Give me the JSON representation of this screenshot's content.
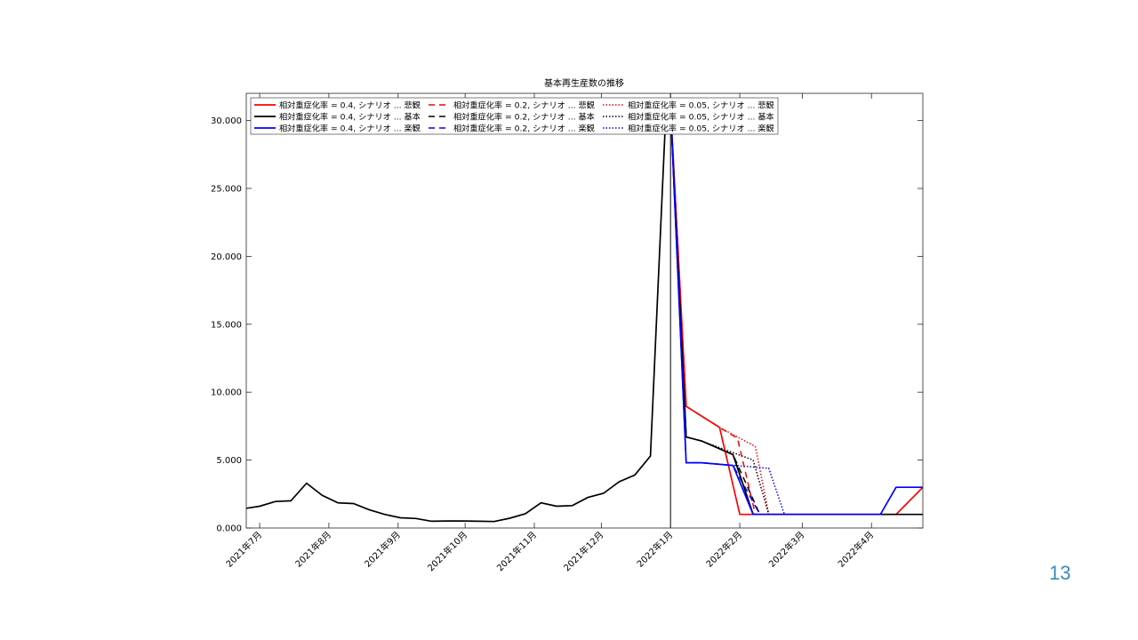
{
  "page": {
    "number": "13"
  },
  "chart_data": {
    "type": "line",
    "title": "基本再生産数の推移",
    "xlabel": "",
    "ylabel": "",
    "x_range": [
      "2021-06-25",
      "2022-04-24"
    ],
    "ylim": [
      0,
      32000
    ],
    "y_ticks": [
      0,
      5000,
      10000,
      15000,
      20000,
      25000,
      30000
    ],
    "y_tick_labels": [
      "0.000",
      "5.000",
      "10.000",
      "15.000",
      "20.000",
      "25.000",
      "30.000"
    ],
    "x_ticks": [
      {
        "date": "2021-07-01",
        "label": "2021年7月"
      },
      {
        "date": "2021-08-01",
        "label": "2021年8月"
      },
      {
        "date": "2021-09-01",
        "label": "2021年9月"
      },
      {
        "date": "2021-10-01",
        "label": "2021年10月"
      },
      {
        "date": "2021-11-01",
        "label": "2021年11月"
      },
      {
        "date": "2021-12-01",
        "label": "2021年12月"
      },
      {
        "date": "2022-01-01",
        "label": "2022年1月"
      },
      {
        "date": "2022-02-01",
        "label": "2022年2月"
      },
      {
        "date": "2022-03-01",
        "label": "2022年3月"
      },
      {
        "date": "2022-04-01",
        "label": "2022年4月"
      }
    ],
    "vertical_line": "2022-01-01",
    "grid": false,
    "legend_position": "top-left (inside)",
    "legend_columns": 3,
    "colors": {
      "悲観": "#ff0000",
      "基本": "#000000",
      "楽観": "#0000ff"
    },
    "history": {
      "x": [
        "2021-06-25",
        "2021-07-01",
        "2021-07-08",
        "2021-07-15",
        "2021-07-22",
        "2021-07-29",
        "2021-08-05",
        "2021-08-12",
        "2021-08-19",
        "2021-08-26",
        "2021-09-02",
        "2021-09-09",
        "2021-09-16",
        "2021-09-23",
        "2021-09-30",
        "2021-10-07",
        "2021-10-14",
        "2021-10-21",
        "2021-10-28",
        "2021-11-04",
        "2021-11-11",
        "2021-11-18",
        "2021-11-25",
        "2021-12-02",
        "2021-12-09",
        "2021-12-16",
        "2021-12-23",
        "2021-12-30"
      ],
      "values": [
        1450,
        1600,
        1950,
        2000,
        3300,
        2400,
        1850,
        1800,
        1350,
        1000,
        750,
        700,
        500,
        520,
        520,
        500,
        480,
        720,
        1050,
        1850,
        1600,
        1650,
        2250,
        2550,
        3400,
        3900,
        5300,
        31000
      ]
    },
    "series": [
      {
        "name": "相対重症化率 = 0.4, シナリオ ... 悲観",
        "style": "solid",
        "scenario": "悲観",
        "x": [
          "2022-01-01",
          "2022-01-08",
          "2022-01-23",
          "2022-02-01",
          "2022-04-12",
          "2022-04-24"
        ],
        "values": [
          31000,
          8950,
          7400,
          1000,
          1000,
          3000
        ]
      },
      {
        "name": "相対重症化率 = 0.4, シナリオ ... 基本",
        "style": "solid",
        "scenario": "基本",
        "x": [
          "2022-01-01",
          "2022-01-08",
          "2022-01-15",
          "2022-01-29",
          "2022-02-07",
          "2022-04-24"
        ],
        "values": [
          31000,
          6700,
          6400,
          5400,
          1000,
          1000
        ]
      },
      {
        "name": "相対重症化率 = 0.4, シナリオ ... 楽観",
        "style": "solid",
        "scenario": "楽観",
        "x": [
          "2022-01-01",
          "2022-01-08",
          "2022-01-15",
          "2022-01-29",
          "2022-02-07",
          "2022-04-05",
          "2022-04-12",
          "2022-04-24"
        ],
        "values": [
          31000,
          4800,
          4800,
          4600,
          1000,
          1000,
          3000,
          3000
        ]
      },
      {
        "name": "相対重症化率 = 0.2, シナリオ ... 悲観",
        "style": "dashed",
        "scenario": "悲観",
        "x": [
          "2022-01-01",
          "2022-01-08",
          "2022-01-23",
          "2022-01-31",
          "2022-02-08",
          "2022-04-24"
        ],
        "values": [
          31000,
          8950,
          7400,
          6600,
          1000,
          1000
        ]
      },
      {
        "name": "相対重症化率 = 0.2, シナリオ ... 基本",
        "style": "dashed",
        "scenario": "基本",
        "x": [
          "2022-01-01",
          "2022-01-08",
          "2022-01-15",
          "2022-01-29",
          "2022-02-10",
          "2022-04-24"
        ],
        "values": [
          31000,
          6700,
          6400,
          5400,
          1000,
          1000
        ]
      },
      {
        "name": "相対重症化率 = 0.2, シナリオ ... 楽観",
        "style": "dashed",
        "scenario": "楽観",
        "x": [
          "2022-01-01",
          "2022-01-08",
          "2022-01-15",
          "2022-01-29",
          "2022-02-10",
          "2022-04-24"
        ],
        "values": [
          31000,
          4800,
          4800,
          4600,
          1000,
          1000
        ]
      },
      {
        "name": "相対重症化率 = 0.05, シナリオ ... 悲観",
        "style": "dotted",
        "scenario": "悲観",
        "x": [
          "2022-01-01",
          "2022-01-08",
          "2022-01-23",
          "2022-02-08",
          "2022-02-14",
          "2022-04-24"
        ],
        "values": [
          31000,
          8950,
          7400,
          6000,
          1000,
          1000
        ]
      },
      {
        "name": "相対重症化率 = 0.05, シナリオ ... 基本",
        "style": "dotted",
        "scenario": "基本",
        "x": [
          "2022-01-01",
          "2022-01-08",
          "2022-01-15",
          "2022-02-07",
          "2022-02-14",
          "2022-04-24"
        ],
        "values": [
          31000,
          6700,
          6400,
          5000,
          1000,
          1000
        ]
      },
      {
        "name": "相対重症化率 = 0.05, シナリオ ... 楽観",
        "style": "dotted",
        "scenario": "楽観",
        "x": [
          "2022-01-01",
          "2022-01-08",
          "2022-01-15",
          "2022-02-14",
          "2022-02-21",
          "2022-04-24"
        ],
        "values": [
          31000,
          4800,
          4800,
          4400,
          1000,
          1000
        ]
      }
    ]
  }
}
